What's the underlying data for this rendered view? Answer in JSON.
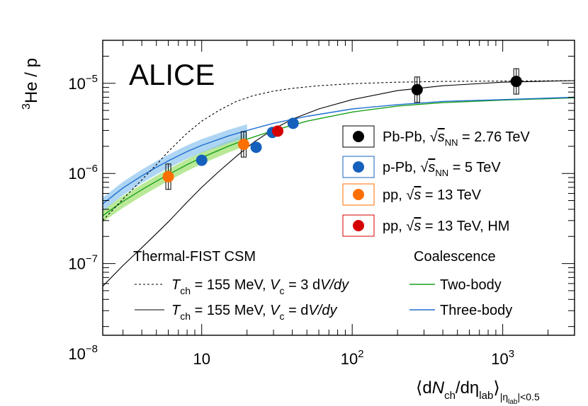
{
  "chart_data": {
    "type": "scatter",
    "experiment_label": "ALICE",
    "ylabel_parts": {
      "sup": "3",
      "main": "He / p"
    },
    "xlabel_parts": {
      "open": "⟨d",
      "N": "N",
      "ch": "ch",
      "mid": "/dη",
      "lab": "lab",
      "close": "⟩",
      "cut_pre": "|η",
      "cut_sub": "lab",
      "cut_post": "|<0.5"
    },
    "x_scale": "log",
    "y_scale": "log",
    "xlim": [
      2.2,
      3000
    ],
    "ylim": [
      1.6e-08,
      3e-05
    ],
    "x_ticks": [
      {
        "value": 10,
        "label": "10"
      },
      {
        "value": 100,
        "label": "10",
        "sup": "2"
      },
      {
        "value": 1000,
        "label": "10",
        "sup": "3"
      }
    ],
    "y_ticks": [
      {
        "value": 1e-08,
        "label": "10",
        "sup": "−8"
      },
      {
        "value": 1e-07,
        "label": "10",
        "sup": "−7"
      },
      {
        "value": 1e-06,
        "label": "10",
        "sup": "−6"
      },
      {
        "value": 1e-05,
        "label": "10",
        "sup": "−5"
      }
    ],
    "series": [
      {
        "system": "Pb-Pb",
        "energy": "2.76 TeV",
        "root": "s",
        "root_sub": "NN",
        "color": "#000000",
        "marker": "circle",
        "points": [
          {
            "x": 270,
            "y": 8.5e-06
          },
          {
            "x": 1230,
            "y": 1.05e-05
          }
        ],
        "syst_boxes": true
      },
      {
        "system": "p-Pb",
        "energy": "5 TeV",
        "root": "s",
        "root_sub": "NN",
        "color": "#1560bd",
        "marker": "circle",
        "points": [
          {
            "x": 10,
            "y": 1.4e-06
          },
          {
            "x": 23,
            "y": 1.95e-06
          },
          {
            "x": 29.5,
            "y": 2.85e-06
          },
          {
            "x": 40.5,
            "y": 3.6e-06
          }
        ]
      },
      {
        "system": "pp",
        "energy": "13 TeV",
        "root": "s",
        "root_sub": "",
        "color": "#ff6f00",
        "marker": "circle",
        "points": [
          {
            "x": 6,
            "y": 9.2e-07
          },
          {
            "x": 19,
            "y": 2.1e-06
          }
        ],
        "syst_boxes": true
      },
      {
        "system": "pp",
        "energy": "13 TeV, HM",
        "root": "s",
        "root_sub": "",
        "color": "#d40000",
        "marker": "circle",
        "points": [
          {
            "x": 32,
            "y": 2.95e-06
          }
        ]
      }
    ],
    "models": {
      "csm_title": "Thermal-FIST CSM",
      "coal_title": "Coalescence",
      "csm": [
        {
          "style": "dashed",
          "T": "T",
          "T_sub": "ch",
          "T_val": "= 155 MeV,",
          "V": "V",
          "V_sub": "c",
          "V_val": "= 3 d",
          "V_tail": "V/dy",
          "points": [
            [
              2.2,
              3e-07
            ],
            [
              3,
              5.2e-07
            ],
            [
              4,
              8.5e-07
            ],
            [
              5,
              1.25e-06
            ],
            [
              6,
              1.75e-06
            ],
            [
              8,
              2.8e-06
            ],
            [
              10,
              3.8e-06
            ],
            [
              13,
              5e-06
            ],
            [
              17,
              6.3e-06
            ],
            [
              22,
              7.3e-06
            ],
            [
              30,
              8.2e-06
            ],
            [
              40,
              8.8e-06
            ],
            [
              60,
              9.4e-06
            ],
            [
              100,
              9.9e-06
            ],
            [
              200,
              1.03e-05
            ],
            [
              400,
              1.05e-05
            ],
            [
              1000,
              1.06e-05
            ],
            [
              3000,
              1.07e-05
            ]
          ]
        },
        {
          "style": "solid",
          "T": "T",
          "T_sub": "ch",
          "T_val": "= 155 MeV,",
          "V": "V",
          "V_sub": "c",
          "V_val": "= d",
          "V_tail": "V/dy",
          "points": [
            [
              2.2,
              5.6e-08
            ],
            [
              3,
              9.5e-08
            ],
            [
              4,
              1.5e-07
            ],
            [
              5,
              2.15e-07
            ],
            [
              6,
              2.9e-07
            ],
            [
              8,
              4.8e-07
            ],
            [
              10,
              7e-07
            ],
            [
              13,
              1.05e-06
            ],
            [
              17,
              1.55e-06
            ],
            [
              22,
              2.2e-06
            ],
            [
              30,
              3.1e-06
            ],
            [
              40,
              4e-06
            ],
            [
              60,
              5.2e-06
            ],
            [
              100,
              6.6e-06
            ],
            [
              200,
              8.3e-06
            ],
            [
              400,
              9.4e-06
            ],
            [
              1000,
              1.03e-05
            ],
            [
              3000,
              1.07e-05
            ]
          ]
        }
      ],
      "coalescence": [
        {
          "name": "Two-body",
          "color": "#1aa01a",
          "band_color": "#9be06b",
          "points": [
            [
              2.2,
              3.4e-07
            ],
            [
              3,
              4.9e-07
            ],
            [
              4,
              6.6e-07
            ],
            [
              5,
              8.2e-07
            ],
            [
              6,
              9.7e-07
            ],
            [
              8,
              1.25e-06
            ],
            [
              10,
              1.5e-06
            ],
            [
              15,
              2e-06
            ],
            [
              20,
              2.4e-06
            ],
            [
              30,
              3e-06
            ],
            [
              50,
              3.8e-06
            ],
            [
              100,
              4.8e-06
            ],
            [
              200,
              5.6e-06
            ],
            [
              400,
              6.1e-06
            ],
            [
              1000,
              6.5e-06
            ],
            [
              3000,
              6.9e-06
            ]
          ],
          "band_rel": 0.15
        },
        {
          "name": "Three-body",
          "color": "#1f6fd1",
          "band_color": "#8cc3ee",
          "points": [
            [
              2.2,
              4.6e-07
            ],
            [
              3,
              6.9e-07
            ],
            [
              4,
              9.4e-07
            ],
            [
              5,
              1.17e-06
            ],
            [
              6,
              1.38e-06
            ],
            [
              8,
              1.75e-06
            ],
            [
              10,
              2.05e-06
            ],
            [
              15,
              2.6e-06
            ],
            [
              20,
              3e-06
            ],
            [
              30,
              3.6e-06
            ],
            [
              50,
              4.3e-06
            ],
            [
              100,
              5.2e-06
            ],
            [
              200,
              5.8e-06
            ],
            [
              400,
              6.3e-06
            ],
            [
              1000,
              6.6e-06
            ],
            [
              3000,
              7e-06
            ]
          ],
          "band_rel": 0.17
        }
      ]
    }
  }
}
